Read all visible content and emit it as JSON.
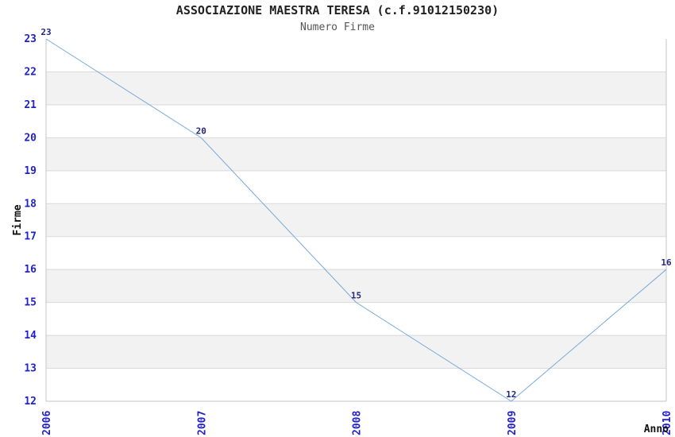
{
  "chart_data": {
    "type": "line",
    "title": "ASSOCIAZIONE MAESTRA TERESA (c.f.91012150230)",
    "subtitle": "Numero Firme",
    "xlabel": "Anno",
    "ylabel": "Firme",
    "x": [
      2006,
      2007,
      2008,
      2009,
      2010
    ],
    "values": [
      23,
      20,
      15,
      12,
      16
    ],
    "point_labels": [
      "23",
      "20",
      "15",
      "12",
      "16"
    ],
    "ylim": [
      12,
      23
    ],
    "ytick_step": 1,
    "yticks": [
      12,
      13,
      14,
      15,
      16,
      17,
      18,
      19,
      20,
      21,
      22,
      23
    ],
    "legend": "none",
    "grid": "horizontal gridlines with alternating white/gray bands",
    "x_tick_rotation_deg": -90,
    "colors": {
      "line": "#76a9dd",
      "band": "#f2f2f2",
      "grid": "#d9d9d9",
      "axis": "#c6c6c6",
      "tick_label": "#2222cc",
      "point_label": "#262678",
      "title": "#222222",
      "subtitle": "#555555",
      "axis_title": "#111111",
      "background": "#ffffff"
    }
  }
}
